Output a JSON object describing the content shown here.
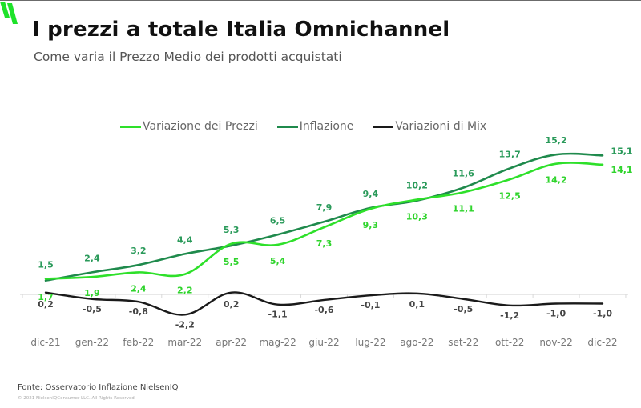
{
  "header": {
    "title": "I prezzi a totale Italia Omnichannel",
    "subtitle": "Come varia il Prezzo Medio dei prodotti acquistati"
  },
  "footer": {
    "source": "Fonte: Osservatorio Inflazione NielsenIQ",
    "copyright": "© 2021 NielsenIQConsumer LLC. All Rights Reserved."
  },
  "colors": {
    "brand": "#1ee22a",
    "prices": "#2ee02a",
    "inflation": "#1f8a4c",
    "mix": "#1a1a1a",
    "axis": "#d9d9d9"
  },
  "chart_data": {
    "type": "line",
    "title": "I prezzi a totale Italia Omnichannel",
    "subtitle": "Come varia il Prezzo Medio dei prodotti acquistati",
    "xlabel": "",
    "ylabel": "",
    "categories": [
      "dic-21",
      "gen-22",
      "feb-22",
      "mar-22",
      "apr-22",
      "mag-22",
      "giu-22",
      "lug-22",
      "ago-22",
      "set-22",
      "ott-22",
      "nov-22",
      "dic-22"
    ],
    "series": [
      {
        "name": "Variazione dei Prezzi",
        "color": "#2ee02a",
        "values": [
          1.7,
          1.9,
          2.4,
          2.2,
          5.5,
          5.4,
          7.3,
          9.3,
          10.3,
          11.1,
          12.5,
          14.2,
          14.1
        ],
        "labels": [
          "1,7",
          "1,9",
          "2,4",
          "2,2",
          "5,5",
          "5,4",
          "7,3",
          "9,3",
          "10,3",
          "11,1",
          "12,5",
          "14,2",
          "14,1"
        ]
      },
      {
        "name": "Inflazione",
        "color": "#1f8a4c",
        "values": [
          1.5,
          2.4,
          3.2,
          4.4,
          5.3,
          6.5,
          7.9,
          9.4,
          10.2,
          11.6,
          13.7,
          15.2,
          15.1
        ],
        "labels": [
          "1,5",
          "2,4",
          "3,2",
          "4,4",
          "5,3",
          "6,5",
          "7,9",
          "9,4",
          "10,2",
          "11,6",
          "13,7",
          "15,2",
          "15,1"
        ]
      },
      {
        "name": "Variazioni di Mix",
        "color": "#1a1a1a",
        "values": [
          0.2,
          -0.5,
          -0.8,
          -2.2,
          0.2,
          -1.1,
          -0.6,
          -0.1,
          0.1,
          -0.5,
          -1.2,
          -1.0,
          -1.0
        ],
        "labels": [
          "0,2",
          "-0,5",
          "-0,8",
          "-2,2",
          "0,2",
          "-1,1",
          "-0,6",
          "-0,1",
          "0,1",
          "-0,5",
          "-1,2",
          "-1,0",
          "-1,0"
        ]
      }
    ],
    "ylim": [
      -3,
      17
    ],
    "grid": false,
    "legend_position": "top-center",
    "data_labels": true
  }
}
